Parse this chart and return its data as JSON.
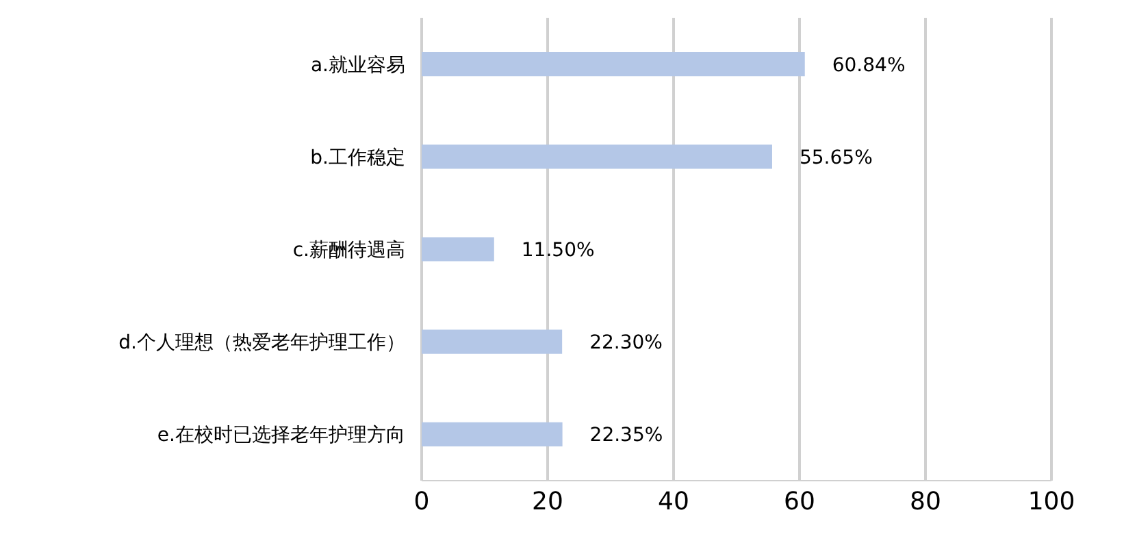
{
  "chart_data": {
    "type": "bar",
    "orientation": "horizontal",
    "categories": [
      "a.就业容易",
      "b.工作稳定",
      "c.薪酬待遇高",
      "d.个人理想（热爱老年护理工作）",
      "e.在校时已选择老年护理方向"
    ],
    "values": [
      60.84,
      55.65,
      11.5,
      22.3,
      22.35
    ],
    "value_labels": [
      "60.84%",
      "55.65%",
      "11.50%",
      "22.30%",
      "22.35%"
    ],
    "color": "#b4c7e7",
    "xlim": [
      0,
      100
    ],
    "xticks": [
      0,
      20,
      40,
      60,
      80,
      100
    ],
    "grid": "x"
  }
}
